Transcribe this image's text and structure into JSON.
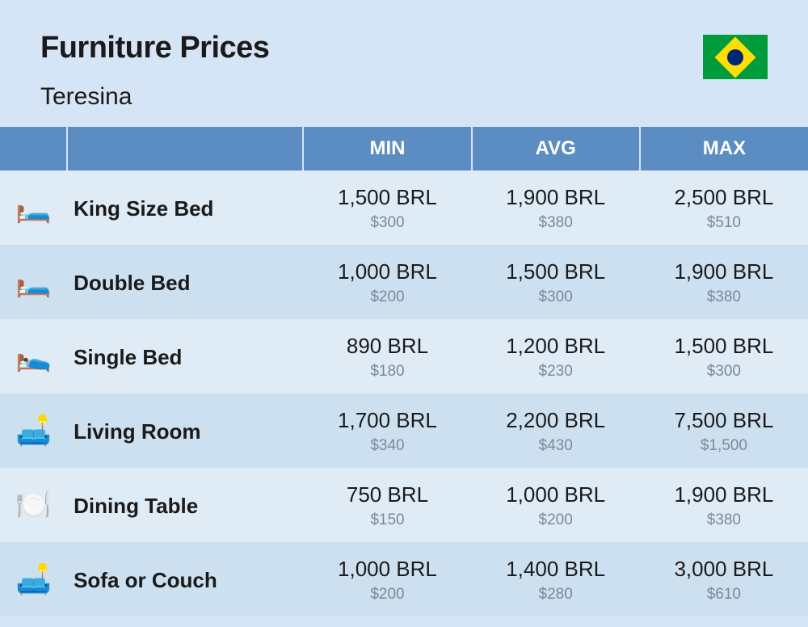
{
  "header": {
    "title": "Furniture Prices",
    "subtitle": "Teresina"
  },
  "columns": {
    "min": "MIN",
    "avg": "AVG",
    "max": "MAX"
  },
  "rows": [
    {
      "icon": "🛏️",
      "name": "King Size Bed",
      "min": {
        "brl": "1,500 BRL",
        "usd": "$300"
      },
      "avg": {
        "brl": "1,900 BRL",
        "usd": "$380"
      },
      "max": {
        "brl": "2,500 BRL",
        "usd": "$510"
      }
    },
    {
      "icon": "🛏️",
      "name": "Double Bed",
      "min": {
        "brl": "1,000 BRL",
        "usd": "$200"
      },
      "avg": {
        "brl": "1,500 BRL",
        "usd": "$300"
      },
      "max": {
        "brl": "1,900 BRL",
        "usd": "$380"
      }
    },
    {
      "icon": "🛌",
      "name": "Single Bed",
      "min": {
        "brl": "890 BRL",
        "usd": "$180"
      },
      "avg": {
        "brl": "1,200 BRL",
        "usd": "$230"
      },
      "max": {
        "brl": "1,500 BRL",
        "usd": "$300"
      }
    },
    {
      "icon": "🛋️",
      "name": "Living Room",
      "min": {
        "brl": "1,700 BRL",
        "usd": "$340"
      },
      "avg": {
        "brl": "2,200 BRL",
        "usd": "$430"
      },
      "max": {
        "brl": "7,500 BRL",
        "usd": "$1,500"
      }
    },
    {
      "icon": "🍽️",
      "name": "Dining Table",
      "min": {
        "brl": "750 BRL",
        "usd": "$150"
      },
      "avg": {
        "brl": "1,000 BRL",
        "usd": "$200"
      },
      "max": {
        "brl": "1,900 BRL",
        "usd": "$380"
      }
    },
    {
      "icon": "🛋️",
      "name": "Sofa or Couch",
      "min": {
        "brl": "1,000 BRL",
        "usd": "$200"
      },
      "avg": {
        "brl": "1,400 BRL",
        "usd": "$280"
      },
      "max": {
        "brl": "3,000 BRL",
        "usd": "$610"
      }
    }
  ],
  "styling": {
    "background_color": "#d5e5f5",
    "header_row_color": "#5b8dc3",
    "odd_row_color": "#dfebf5",
    "even_row_color": "#cde0ef",
    "title_color": "#1a1a1a",
    "sub_price_color": "#7a8a9a",
    "title_fontsize": 38,
    "subtitle_fontsize": 30,
    "header_fontsize": 24,
    "name_fontsize": 26,
    "price_main_fontsize": 26,
    "price_sub_fontsize": 19
  }
}
